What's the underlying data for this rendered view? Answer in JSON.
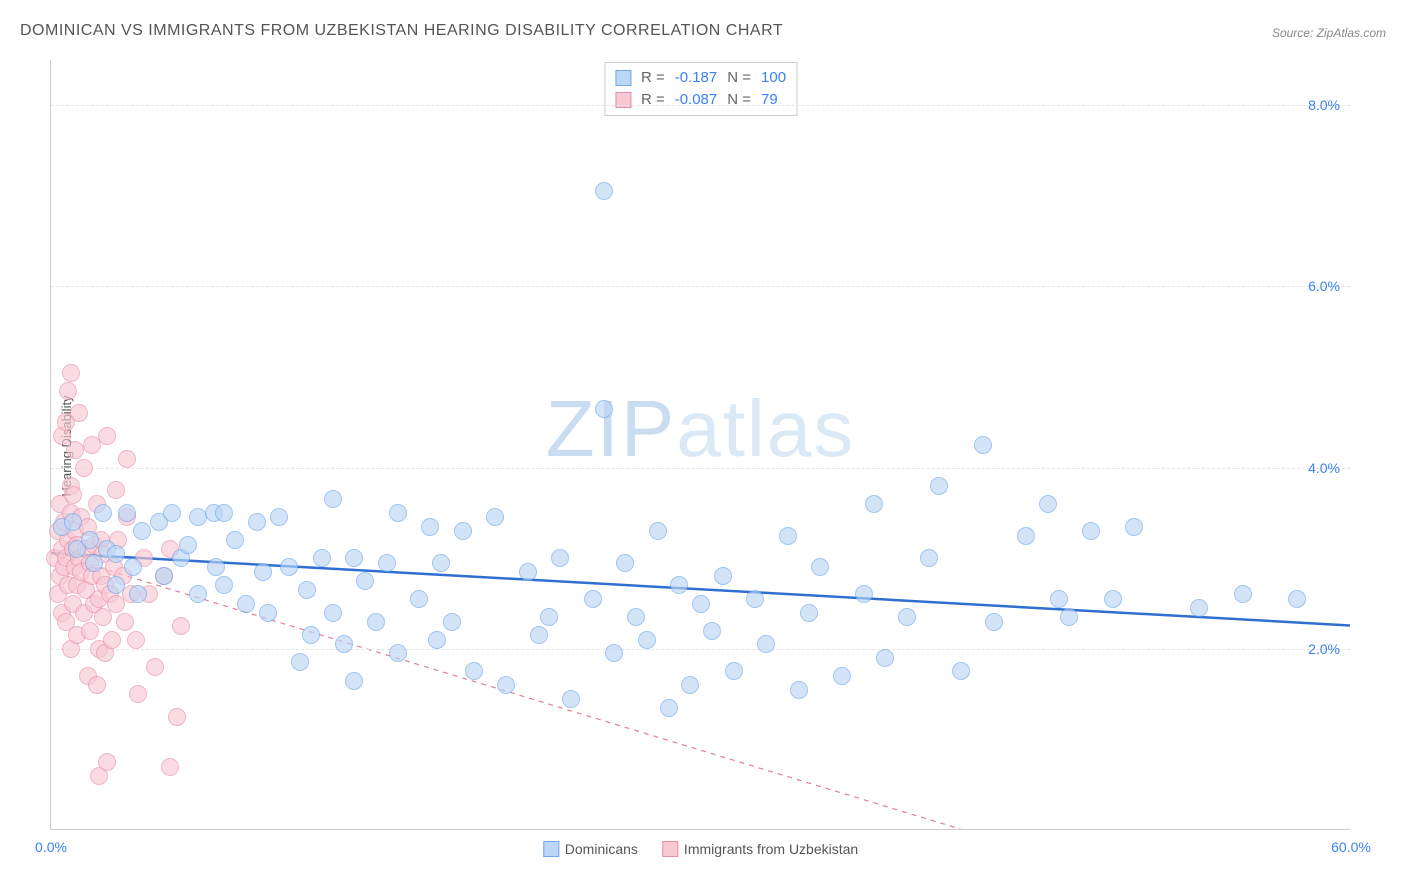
{
  "title": "DOMINICAN VS IMMIGRANTS FROM UZBEKISTAN HEARING DISABILITY CORRELATION CHART",
  "source": "Source: ZipAtlas.com",
  "y_axis_label": "Hearing Disability",
  "watermark": {
    "part1": "ZIP",
    "part2": "atlas"
  },
  "chart": {
    "type": "scatter",
    "background_color": "#ffffff",
    "grid_color": "#e5e5e5",
    "axis_color": "#cccccc",
    "xlim": [
      0,
      60
    ],
    "ylim": [
      0,
      8.5
    ],
    "x_ticks": [
      {
        "value": 0,
        "label": "0.0%",
        "color": "#3b82f6"
      },
      {
        "value": 60,
        "label": "60.0%",
        "color": "#3b82f6"
      }
    ],
    "y_ticks": [
      {
        "value": 2,
        "label": "2.0%",
        "color": "#3b82f6"
      },
      {
        "value": 4,
        "label": "4.0%",
        "color": "#3b82f6"
      },
      {
        "value": 6,
        "label": "6.0%",
        "color": "#3b82f6"
      },
      {
        "value": 8,
        "label": "8.0%",
        "color": "#3b82f6"
      }
    ],
    "legend_stats": [
      {
        "swatch_fill": "#bcd6f7",
        "swatch_border": "#6fa8e8",
        "r_label": "R =",
        "r_value": "-0.187",
        "n_label": "N =",
        "n_value": "100"
      },
      {
        "swatch_fill": "#f8c9d4",
        "swatch_border": "#e890a7",
        "r_label": "R =",
        "r_value": "-0.087",
        "n_label": "N =",
        "n_value": "79"
      }
    ],
    "legend_series": [
      {
        "swatch_fill": "#bcd6f7",
        "swatch_border": "#6fa8e8",
        "label": "Dominicans"
      },
      {
        "swatch_fill": "#f8c9d4",
        "swatch_border": "#e890a7",
        "label": "Immigrants from Uzbekistan"
      }
    ],
    "series": [
      {
        "name": "Dominicans",
        "fill": "#bcd6f7",
        "stroke": "#6fa8e8",
        "opacity": 0.65,
        "marker_radius": 9,
        "trend": {
          "x1": 0,
          "y1": 3.05,
          "x2": 60,
          "y2": 2.25,
          "stroke": "#2f6fd0",
          "width": 2.5,
          "dash": "none"
        },
        "points": [
          [
            0.5,
            3.35
          ],
          [
            1.2,
            3.1
          ],
          [
            1.0,
            3.4
          ],
          [
            1.8,
            3.2
          ],
          [
            2.0,
            2.95
          ],
          [
            2.4,
            3.5
          ],
          [
            2.6,
            3.1
          ],
          [
            3.0,
            3.05
          ],
          [
            3.0,
            2.7
          ],
          [
            3.5,
            3.5
          ],
          [
            3.8,
            2.9
          ],
          [
            4.2,
            3.3
          ],
          [
            4.0,
            2.6
          ],
          [
            5.0,
            3.4
          ],
          [
            5.2,
            2.8
          ],
          [
            5.6,
            3.5
          ],
          [
            6.0,
            3.0
          ],
          [
            6.3,
            3.15
          ],
          [
            6.8,
            2.6
          ],
          [
            6.8,
            3.45
          ],
          [
            7.5,
            3.5
          ],
          [
            7.6,
            2.9
          ],
          [
            8.0,
            3.5
          ],
          [
            8.0,
            2.7
          ],
          [
            8.5,
            3.2
          ],
          [
            9.0,
            2.5
          ],
          [
            9.5,
            3.4
          ],
          [
            9.8,
            2.85
          ],
          [
            10.0,
            2.4
          ],
          [
            10.5,
            3.45
          ],
          [
            11.0,
            2.9
          ],
          [
            11.5,
            1.85
          ],
          [
            11.8,
            2.65
          ],
          [
            12.0,
            2.15
          ],
          [
            12.5,
            3.0
          ],
          [
            13.0,
            3.65
          ],
          [
            13.0,
            2.4
          ],
          [
            13.5,
            2.05
          ],
          [
            14.0,
            3.0
          ],
          [
            14.0,
            1.65
          ],
          [
            14.5,
            2.75
          ],
          [
            15.0,
            2.3
          ],
          [
            15.5,
            2.95
          ],
          [
            16.0,
            3.5
          ],
          [
            16.0,
            1.95
          ],
          [
            17.0,
            2.55
          ],
          [
            17.5,
            3.35
          ],
          [
            17.8,
            2.1
          ],
          [
            18.0,
            2.95
          ],
          [
            18.5,
            2.3
          ],
          [
            19.0,
            3.3
          ],
          [
            19.5,
            1.75
          ],
          [
            20.5,
            3.45
          ],
          [
            21.0,
            1.6
          ],
          [
            22.0,
            2.85
          ],
          [
            22.5,
            2.15
          ],
          [
            23.0,
            2.35
          ],
          [
            23.5,
            3.0
          ],
          [
            24.0,
            1.45
          ],
          [
            25.0,
            2.55
          ],
          [
            25.5,
            4.65
          ],
          [
            25.5,
            7.05
          ],
          [
            26.0,
            1.95
          ],
          [
            26.5,
            2.95
          ],
          [
            27.0,
            2.35
          ],
          [
            27.5,
            2.1
          ],
          [
            28.0,
            3.3
          ],
          [
            28.5,
            1.35
          ],
          [
            29.0,
            2.7
          ],
          [
            29.5,
            1.6
          ],
          [
            30.0,
            2.5
          ],
          [
            30.5,
            2.2
          ],
          [
            31.0,
            2.8
          ],
          [
            31.5,
            1.75
          ],
          [
            32.5,
            2.55
          ],
          [
            33.0,
            2.05
          ],
          [
            34.0,
            3.25
          ],
          [
            34.5,
            1.55
          ],
          [
            35.0,
            2.4
          ],
          [
            35.5,
            2.9
          ],
          [
            36.5,
            1.7
          ],
          [
            37.5,
            2.6
          ],
          [
            38.0,
            3.6
          ],
          [
            38.5,
            1.9
          ],
          [
            39.5,
            2.35
          ],
          [
            40.5,
            3.0
          ],
          [
            41.0,
            3.8
          ],
          [
            42.0,
            1.75
          ],
          [
            43.0,
            4.25
          ],
          [
            43.5,
            2.3
          ],
          [
            45.0,
            3.25
          ],
          [
            46.0,
            3.6
          ],
          [
            46.5,
            2.55
          ],
          [
            47.0,
            2.35
          ],
          [
            48.0,
            3.3
          ],
          [
            49.0,
            2.55
          ],
          [
            50.0,
            3.35
          ],
          [
            53.0,
            2.45
          ],
          [
            55.0,
            2.6
          ],
          [
            57.5,
            2.55
          ]
        ]
      },
      {
        "name": "Immigrants from Uzbekistan",
        "fill": "#f8c9d4",
        "stroke": "#e890a7",
        "opacity": 0.65,
        "marker_radius": 9,
        "trend": {
          "x1": 0,
          "y1": 3.05,
          "x2": 42,
          "y2": 0,
          "stroke": "#e07f98",
          "width": 1.2,
          "dash": "5,5"
        },
        "points": [
          [
            0.2,
            3.0
          ],
          [
            0.3,
            2.6
          ],
          [
            0.3,
            3.3
          ],
          [
            0.4,
            3.6
          ],
          [
            0.4,
            2.8
          ],
          [
            0.5,
            3.1
          ],
          [
            0.5,
            2.4
          ],
          [
            0.5,
            4.35
          ],
          [
            0.6,
            3.4
          ],
          [
            0.6,
            2.9
          ],
          [
            0.7,
            3.0
          ],
          [
            0.7,
            2.3
          ],
          [
            0.7,
            4.5
          ],
          [
            0.8,
            2.7
          ],
          [
            0.8,
            3.2
          ],
          [
            0.8,
            4.85
          ],
          [
            0.9,
            2.0
          ],
          [
            0.9,
            3.5
          ],
          [
            0.9,
            3.8
          ],
          [
            0.9,
            5.05
          ],
          [
            1.0,
            2.5
          ],
          [
            1.0,
            3.1
          ],
          [
            1.0,
            3.7
          ],
          [
            1.1,
            2.9
          ],
          [
            1.1,
            3.3
          ],
          [
            1.1,
            4.2
          ],
          [
            1.2,
            2.15
          ],
          [
            1.2,
            2.7
          ],
          [
            1.2,
            3.15
          ],
          [
            1.3,
            4.6
          ],
          [
            1.3,
            3.0
          ],
          [
            1.4,
            2.85
          ],
          [
            1.4,
            3.45
          ],
          [
            1.5,
            2.4
          ],
          [
            1.5,
            4.0
          ],
          [
            1.6,
            3.1
          ],
          [
            1.6,
            2.65
          ],
          [
            1.7,
            1.7
          ],
          [
            1.7,
            3.35
          ],
          [
            1.8,
            2.95
          ],
          [
            1.8,
            2.2
          ],
          [
            1.9,
            4.25
          ],
          [
            1.9,
            2.8
          ],
          [
            2.0,
            3.15
          ],
          [
            2.0,
            2.5
          ],
          [
            2.1,
            3.6
          ],
          [
            2.1,
            1.6
          ],
          [
            2.2,
            2.0
          ],
          [
            2.2,
            2.55
          ],
          [
            2.2,
            0.6
          ],
          [
            2.3,
            3.2
          ],
          [
            2.3,
            2.8
          ],
          [
            2.4,
            2.35
          ],
          [
            2.4,
            3.05
          ],
          [
            2.5,
            2.7
          ],
          [
            2.5,
            1.95
          ],
          [
            2.6,
            4.35
          ],
          [
            2.6,
            0.75
          ],
          [
            2.7,
            2.6
          ],
          [
            2.8,
            2.1
          ],
          [
            2.9,
            2.9
          ],
          [
            3.0,
            3.75
          ],
          [
            3.0,
            2.5
          ],
          [
            3.1,
            3.2
          ],
          [
            3.3,
            2.8
          ],
          [
            3.4,
            2.3
          ],
          [
            3.5,
            3.45
          ],
          [
            3.5,
            4.1
          ],
          [
            3.7,
            2.6
          ],
          [
            3.9,
            2.1
          ],
          [
            4.0,
            1.5
          ],
          [
            4.3,
            3.0
          ],
          [
            4.5,
            2.6
          ],
          [
            4.8,
            1.8
          ],
          [
            5.2,
            2.8
          ],
          [
            5.5,
            0.7
          ],
          [
            5.5,
            3.1
          ],
          [
            5.8,
            1.25
          ],
          [
            6.0,
            2.25
          ]
        ]
      }
    ]
  }
}
